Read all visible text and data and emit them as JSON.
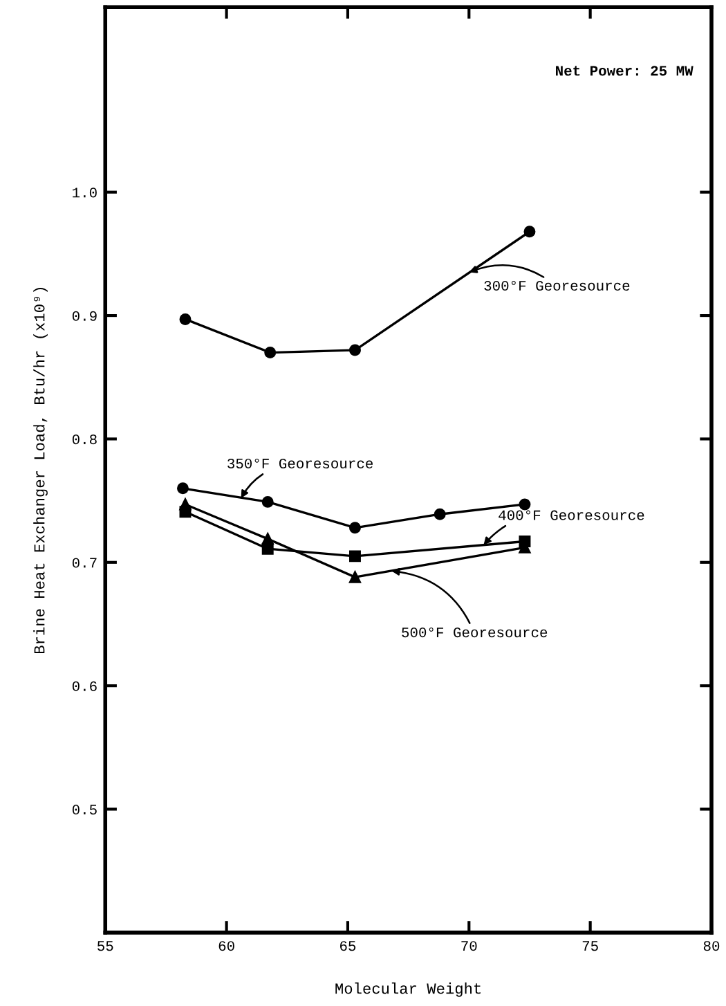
{
  "chart_data": {
    "type": "line",
    "xlabel": "Molecular Weight",
    "ylabel": "Brine Heat Exchanger Load, Btu/hr (x10⁹)",
    "xlim": [
      55,
      80
    ],
    "xticks": [
      55,
      60,
      65,
      70,
      75,
      80
    ],
    "ylim": [
      0.4,
      1.15
    ],
    "yticks": [
      0.5,
      0.6,
      0.7,
      0.8,
      0.9,
      {
        "value": 1.0,
        "label": "1.0"
      }
    ],
    "grid": false,
    "line_style": "solid",
    "series": [
      {
        "color": "#000000",
        "marker": "circle",
        "x": [
          58.3,
          61.8,
          65.3,
          72.5
        ],
        "values": [
          0.897,
          0.87,
          0.872,
          0.968
        ]
      },
      {
        "color": "#000000",
        "marker": "circle",
        "x": [
          58.2,
          61.7,
          65.3,
          68.8,
          72.3
        ],
        "values": [
          0.76,
          0.749,
          0.728,
          0.739,
          0.747
        ]
      },
      {
        "color": "#000000",
        "marker": "square",
        "x": [
          58.3,
          61.7,
          65.3,
          72.3
        ],
        "values": [
          0.741,
          0.711,
          0.705,
          0.717
        ]
      },
      {
        "color": "#000000",
        "marker": "triangle",
        "x": [
          58.3,
          61.7,
          65.3,
          72.3
        ],
        "values": [
          0.747,
          0.719,
          0.688,
          0.712
        ]
      }
    ],
    "annotations": [
      "Net Power: 25 MW",
      {
        "text": "300°F Georesource",
        "x": 70.0,
        "y": 0.935
      },
      {
        "text": "350°F Georesource",
        "x": 60.6,
        "y": 0.752
      },
      {
        "text": "400°F Georesource",
        "x": 70.6,
        "y": 0.714
      },
      {
        "text": "500°F Georesource",
        "x": 66.8,
        "y": 0.693
      }
    ]
  }
}
